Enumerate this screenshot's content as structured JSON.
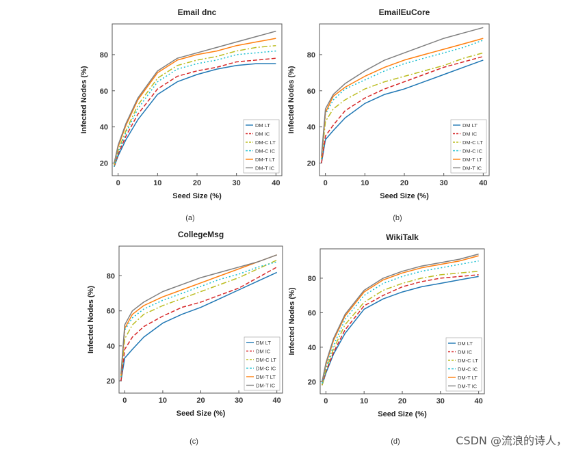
{
  "watermark": "CSDN @流浪的诗人，",
  "legend_labels": [
    "DM LT",
    "DM IC",
    "DM-C LT",
    "DM-C IC",
    "DM-T LT",
    "DM-T IC"
  ],
  "series_colors": {
    "DM LT": "#1f77b4",
    "DM IC": "#d62728",
    "DM-C LT": "#bcbd22",
    "DM-C IC": "#17becf",
    "DM-T LT": "#ff7f0e",
    "DM-T IC": "#7f7f7f"
  },
  "chart_data": [
    {
      "type": "line",
      "panel_label": "(a)",
      "title": "Email dnc",
      "xlabel": "Seed Size (%)",
      "ylabel": "Infected Nodes (%)",
      "xlim": [
        -1.5,
        41.5
      ],
      "ylim": [
        13,
        97
      ],
      "xticks": [
        0,
        10,
        20,
        30,
        40
      ],
      "yticks": [
        20,
        40,
        60,
        80
      ],
      "legend_position": "bottom-right",
      "x": [
        -1,
        0,
        2,
        5,
        10,
        15,
        20,
        25,
        30,
        35,
        40
      ],
      "series": [
        {
          "name": "DM LT",
          "values": [
            18,
            24,
            33,
            44,
            58,
            65,
            69,
            72,
            74,
            75,
            75
          ]
        },
        {
          "name": "DM IC",
          "values": [
            18,
            25,
            35,
            47,
            61,
            68,
            71,
            73,
            76,
            77,
            78
          ]
        },
        {
          "name": "DM-C LT",
          "values": [
            19,
            27,
            38,
            52,
            67,
            74,
            77,
            79,
            82,
            84,
            85
          ]
        },
        {
          "name": "DM-C IC",
          "values": [
            18,
            26,
            37,
            50,
            65,
            72,
            75,
            77,
            80,
            81,
            82
          ]
        },
        {
          "name": "DM-T LT",
          "values": [
            20,
            29,
            41,
            55,
            70,
            77,
            80,
            82,
            85,
            87,
            89
          ]
        },
        {
          "name": "DM-T IC",
          "values": [
            20,
            30,
            42,
            56,
            71,
            78,
            81,
            84,
            87,
            90,
            93
          ]
        }
      ]
    },
    {
      "type": "line",
      "panel_label": "(b)",
      "title": "EmailEuCore",
      "xlabel": "Seed Size (%)",
      "ylabel": "Infected Nodes (%)",
      "xlim": [
        -1.5,
        41.5
      ],
      "ylim": [
        13,
        97
      ],
      "xticks": [
        0,
        10,
        20,
        30,
        40
      ],
      "yticks": [
        20,
        40,
        60,
        80
      ],
      "legend_position": "bottom-right",
      "x": [
        -1,
        0,
        2,
        5,
        10,
        15,
        20,
        25,
        30,
        35,
        40
      ],
      "series": [
        {
          "name": "DM LT",
          "values": [
            20,
            33,
            38,
            45,
            53,
            58,
            61,
            65,
            69,
            73,
            77
          ]
        },
        {
          "name": "DM IC",
          "values": [
            20,
            35,
            41,
            49,
            56,
            61,
            65,
            69,
            73,
            76,
            79
          ]
        },
        {
          "name": "DM-C LT",
          "values": [
            22,
            43,
            50,
            55,
            61,
            65,
            68,
            71,
            74,
            78,
            81
          ]
        },
        {
          "name": "DM-C IC",
          "values": [
            22,
            47,
            55,
            61,
            66,
            71,
            75,
            78,
            81,
            84,
            88
          ]
        },
        {
          "name": "DM-T LT",
          "values": [
            23,
            48,
            57,
            62,
            68,
            73,
            77,
            80,
            83,
            86,
            89
          ]
        },
        {
          "name": "DM-T IC",
          "values": [
            24,
            50,
            58,
            64,
            71,
            77,
            81,
            85,
            89,
            92,
            95
          ]
        }
      ]
    },
    {
      "type": "line",
      "panel_label": "(c)",
      "title": "CollegeMsg",
      "xlabel": "Seed Size (%)",
      "ylabel": "Infected Nodes (%)",
      "xlim": [
        -1.5,
        41.5
      ],
      "ylim": [
        13,
        97
      ],
      "xticks": [
        0,
        10,
        20,
        30,
        40
      ],
      "yticks": [
        20,
        40,
        60,
        80
      ],
      "legend_position": "bottom-right",
      "x": [
        -1,
        0,
        2,
        5,
        10,
        15,
        20,
        25,
        30,
        35,
        40
      ],
      "series": [
        {
          "name": "DM LT",
          "values": [
            20,
            33,
            38,
            45,
            53,
            58,
            62,
            67,
            72,
            77,
            82
          ]
        },
        {
          "name": "DM IC",
          "values": [
            20,
            38,
            45,
            51,
            57,
            62,
            65,
            69,
            73,
            79,
            85
          ]
        },
        {
          "name": "DM-C LT",
          "values": [
            22,
            44,
            52,
            58,
            63,
            67,
            71,
            75,
            79,
            84,
            89
          ]
        },
        {
          "name": "DM-C IC",
          "values": [
            22,
            49,
            56,
            61,
            66,
            70,
            74,
            78,
            81,
            85,
            88
          ]
        },
        {
          "name": "DM-T LT",
          "values": [
            23,
            50,
            58,
            63,
            68,
            72,
            76,
            80,
            84,
            88,
            92
          ]
        },
        {
          "name": "DM-T IC",
          "values": [
            24,
            52,
            60,
            65,
            71,
            75,
            79,
            82,
            85,
            88,
            92
          ]
        }
      ]
    },
    {
      "type": "line",
      "panel_label": "(d)",
      "title": "WikiTalk",
      "xlabel": "Seed Size (%)",
      "ylabel": "Infected Nodes (%)",
      "xlim": [
        -1.5,
        41.5
      ],
      "ylim": [
        13,
        97
      ],
      "xticks": [
        0,
        10,
        20,
        30,
        40
      ],
      "yticks": [
        20,
        40,
        60,
        80
      ],
      "legend_position": "bottom-right",
      "x": [
        -1,
        0,
        2,
        5,
        10,
        15,
        20,
        25,
        30,
        35,
        40
      ],
      "series": [
        {
          "name": "DM LT",
          "values": [
            18,
            25,
            36,
            48,
            62,
            68,
            72,
            75,
            77,
            79,
            81
          ]
        },
        {
          "name": "DM IC",
          "values": [
            18,
            26,
            37,
            50,
            64,
            70,
            75,
            78,
            80,
            81,
            82
          ]
        },
        {
          "name": "DM-C LT",
          "values": [
            18,
            27,
            39,
            53,
            66,
            73,
            77,
            80,
            82,
            83,
            84
          ]
        },
        {
          "name": "DM-C IC",
          "values": [
            19,
            28,
            41,
            56,
            70,
            77,
            81,
            84,
            86,
            88,
            90
          ]
        },
        {
          "name": "DM-T LT",
          "values": [
            20,
            30,
            44,
            58,
            72,
            79,
            83,
            86,
            88,
            90,
            93
          ]
        },
        {
          "name": "DM-T IC",
          "values": [
            20,
            31,
            45,
            59,
            73,
            80,
            84,
            87,
            89,
            91,
            94
          ]
        }
      ]
    }
  ]
}
